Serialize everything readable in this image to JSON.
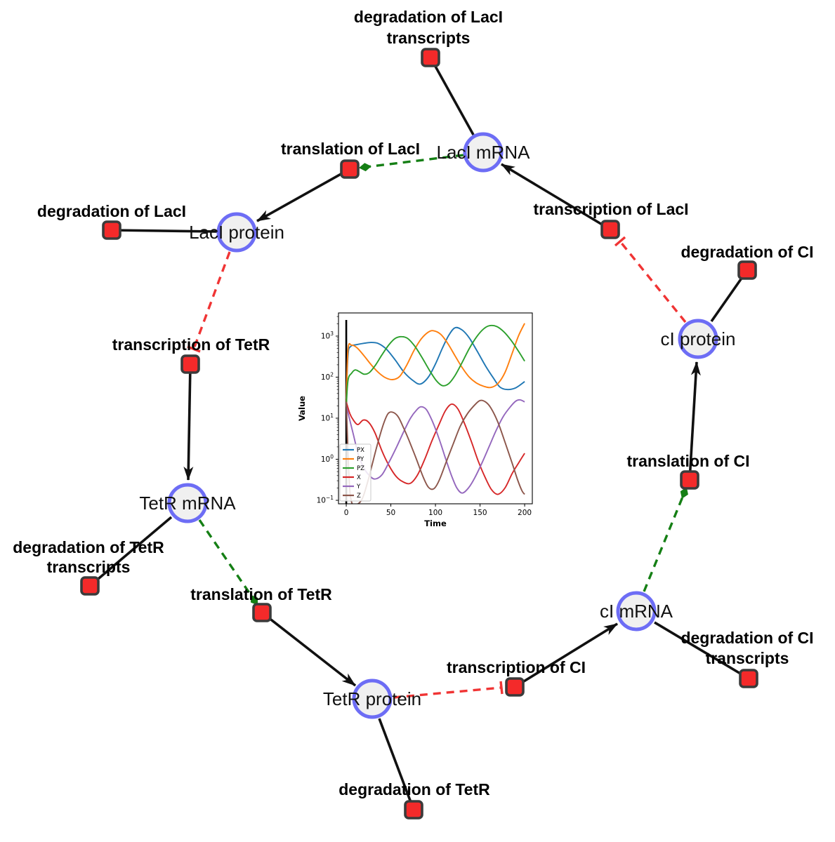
{
  "figure": {
    "background": "#ffffff",
    "description": "Repressilator gene regulatory network with inset simulation time course"
  },
  "diagram": {
    "species": {
      "laci_mrna": {
        "label": "LacI mRNA"
      },
      "laci_protein": {
        "label": "LacI protein"
      },
      "tetr_mrna": {
        "label": "TetR mRNA"
      },
      "tetr_protein": {
        "label": "TetR protein"
      },
      "ci_mrna": {
        "label": "cI mRNA"
      },
      "ci_protein": {
        "label": "cI protein"
      }
    },
    "reactions": {
      "degradation_laci_transcripts": {
        "line1": "degradation of LacI",
        "line2": "transcripts"
      },
      "translation_laci": {
        "label": "translation of LacI"
      },
      "degradation_laci": {
        "label": "degradation of LacI"
      },
      "transcription_laci": {
        "label": "transcription of LacI"
      },
      "degradation_ci": {
        "label": "degradation of CI"
      },
      "transcription_tetr": {
        "label": "transcription of TetR"
      },
      "degradation_tetr_transcripts": {
        "line1": "degradation of TetR",
        "line2": "transcripts"
      },
      "translation_tetr": {
        "label": "translation of TetR"
      },
      "translation_ci": {
        "label": "translation of CI"
      },
      "transcription_ci": {
        "label": "transcription of CI"
      },
      "degradation_ci_transcripts": {
        "line1": "degradation of CI",
        "line2": "transcripts"
      },
      "degradation_tetr": {
        "label": "degradation of TetR"
      }
    },
    "edges": [
      {
        "from": "LacI mRNA",
        "to": "degradation of LacI transcripts",
        "type": "consumption"
      },
      {
        "from": "transcription of LacI",
        "to": "LacI mRNA",
        "type": "production"
      },
      {
        "from": "LacI mRNA",
        "to": "translation of LacI",
        "type": "modifier"
      },
      {
        "from": "translation of LacI",
        "to": "LacI protein",
        "type": "production"
      },
      {
        "from": "LacI protein",
        "to": "degradation of LacI",
        "type": "consumption"
      },
      {
        "from": "LacI protein",
        "to": "transcription of TetR",
        "type": "inhibition"
      },
      {
        "from": "transcription of TetR",
        "to": "TetR mRNA",
        "type": "production"
      },
      {
        "from": "TetR mRNA",
        "to": "degradation of TetR transcripts",
        "type": "consumption"
      },
      {
        "from": "TetR mRNA",
        "to": "translation of TetR",
        "type": "modifier"
      },
      {
        "from": "translation of TetR",
        "to": "TetR protein",
        "type": "production"
      },
      {
        "from": "TetR protein",
        "to": "degradation of TetR",
        "type": "consumption"
      },
      {
        "from": "TetR protein",
        "to": "transcription of CI",
        "type": "inhibition"
      },
      {
        "from": "transcription of CI",
        "to": "cI mRNA",
        "type": "production"
      },
      {
        "from": "cI mRNA",
        "to": "degradation of CI transcripts",
        "type": "consumption"
      },
      {
        "from": "cI mRNA",
        "to": "translation of CI",
        "type": "modifier"
      },
      {
        "from": "translation of CI",
        "to": "cI protein",
        "type": "production"
      },
      {
        "from": "cI protein",
        "to": "degradation of CI",
        "type": "consumption"
      },
      {
        "from": "cI protein",
        "to": "transcription of LacI",
        "type": "inhibition"
      }
    ],
    "colors": {
      "species_fill": "#f0f0f0",
      "species_stroke": "#6d6df5",
      "reaction_fill": "#f42a2a",
      "reaction_stroke": "#3b3b3b",
      "flow_edge": "#111111",
      "modifier_edge": "#157f15",
      "inhibition_edge": "#f03434"
    }
  },
  "chart_data": {
    "type": "line",
    "title": "",
    "xlabel": "Time",
    "ylabel": "Value",
    "yscale": "log",
    "grid": false,
    "legend_position": "lower left",
    "x_ticks": [
      0,
      50,
      100,
      150,
      200
    ],
    "y_tick_exponents": [
      3,
      2,
      1,
      0,
      -1
    ],
    "xlim": [
      -8.7,
      208.6
    ],
    "ylog_lim": [
      -1.085,
      3.564
    ],
    "vline_x": 0,
    "series": [
      {
        "name": "PX",
        "color": "#1f77b4",
        "points": [
          [
            0,
            30
          ],
          [
            2,
            350
          ],
          [
            5,
            560
          ],
          [
            12,
            620
          ],
          [
            20,
            670
          ],
          [
            28,
            700
          ],
          [
            36,
            660
          ],
          [
            45,
            480
          ],
          [
            55,
            260
          ],
          [
            65,
            130
          ],
          [
            75,
            82
          ],
          [
            83,
            68
          ],
          [
            92,
            100
          ],
          [
            100,
            210
          ],
          [
            108,
            520
          ],
          [
            115,
            1050
          ],
          [
            122,
            1600
          ],
          [
            130,
            1400
          ],
          [
            138,
            900
          ],
          [
            147,
            420
          ],
          [
            156,
            190
          ],
          [
            165,
            95
          ],
          [
            172,
            58
          ],
          [
            180,
            50
          ],
          [
            190,
            55
          ],
          [
            200,
            78
          ]
        ]
      },
      {
        "name": "PY",
        "color": "#ff7f0e",
        "points": [
          [
            0,
            25
          ],
          [
            2,
            480
          ],
          [
            6,
            600
          ],
          [
            12,
            520
          ],
          [
            20,
            330
          ],
          [
            28,
            200
          ],
          [
            36,
            130
          ],
          [
            44,
            97
          ],
          [
            52,
            87
          ],
          [
            60,
            105
          ],
          [
            68,
            200
          ],
          [
            76,
            450
          ],
          [
            84,
            850
          ],
          [
            92,
            1250
          ],
          [
            98,
            1350
          ],
          [
            106,
            1100
          ],
          [
            114,
            650
          ],
          [
            122,
            330
          ],
          [
            130,
            170
          ],
          [
            138,
            100
          ],
          [
            146,
            72
          ],
          [
            154,
            60
          ],
          [
            162,
            56
          ],
          [
            170,
            70
          ],
          [
            178,
            130
          ],
          [
            186,
            380
          ],
          [
            193,
            1000
          ],
          [
            200,
            2050
          ]
        ]
      },
      {
        "name": "PZ",
        "color": "#2ca02c",
        "points": [
          [
            0,
            20
          ],
          [
            2,
            85
          ],
          [
            6,
            125
          ],
          [
            10,
            150
          ],
          [
            15,
            135
          ],
          [
            20,
            118
          ],
          [
            26,
            130
          ],
          [
            33,
            200
          ],
          [
            40,
            350
          ],
          [
            48,
            620
          ],
          [
            55,
            880
          ],
          [
            62,
            970
          ],
          [
            69,
            870
          ],
          [
            77,
            560
          ],
          [
            85,
            300
          ],
          [
            93,
            150
          ],
          [
            101,
            82
          ],
          [
            108,
            62
          ],
          [
            115,
            70
          ],
          [
            122,
            110
          ],
          [
            130,
            230
          ],
          [
            138,
            500
          ],
          [
            146,
            950
          ],
          [
            154,
            1500
          ],
          [
            161,
            1800
          ],
          [
            169,
            1700
          ],
          [
            177,
            1250
          ],
          [
            185,
            780
          ],
          [
            193,
            430
          ],
          [
            200,
            245
          ]
        ]
      },
      {
        "name": "X",
        "color": "#d62728",
        "points": [
          [
            0,
            25
          ],
          [
            4,
            13
          ],
          [
            8,
            9
          ],
          [
            13,
            7
          ],
          [
            19,
            9
          ],
          [
            25,
            8
          ],
          [
            32,
            4.5
          ],
          [
            40,
            1.6
          ],
          [
            48,
            0.7
          ],
          [
            56,
            0.38
          ],
          [
            64,
            0.28
          ],
          [
            72,
            0.26
          ],
          [
            80,
            0.42
          ],
          [
            88,
            1
          ],
          [
            96,
            2.8
          ],
          [
            104,
            7
          ],
          [
            111,
            15
          ],
          [
            118,
            22
          ],
          [
            125,
            17
          ],
          [
            132,
            8
          ],
          [
            140,
            2.8
          ],
          [
            148,
            0.9
          ],
          [
            156,
            0.35
          ],
          [
            163,
            0.18
          ],
          [
            170,
            0.14
          ],
          [
            178,
            0.2
          ],
          [
            186,
            0.45
          ],
          [
            193,
            0.8
          ],
          [
            200,
            1.4
          ]
        ]
      },
      {
        "name": "Y",
        "color": "#9467bd",
        "points": [
          [
            0,
            20
          ],
          [
            4,
            9
          ],
          [
            8,
            4
          ],
          [
            14,
            1.2
          ],
          [
            20,
            0.6
          ],
          [
            26,
            0.4
          ],
          [
            32,
            0.33
          ],
          [
            40,
            0.42
          ],
          [
            48,
            0.85
          ],
          [
            56,
            1.9
          ],
          [
            64,
            4.5
          ],
          [
            72,
            10
          ],
          [
            79,
            16
          ],
          [
            84,
            19
          ],
          [
            90,
            16
          ],
          [
            97,
            8
          ],
          [
            104,
            3.2
          ],
          [
            111,
            1.1
          ],
          [
            118,
            0.4
          ],
          [
            124,
            0.2
          ],
          [
            130,
            0.15
          ],
          [
            137,
            0.2
          ],
          [
            144,
            0.35
          ],
          [
            152,
            0.8
          ],
          [
            160,
            2
          ],
          [
            168,
            5
          ],
          [
            176,
            11
          ],
          [
            184,
            19
          ],
          [
            190,
            26
          ],
          [
            195,
            28
          ],
          [
            200,
            25
          ]
        ]
      },
      {
        "name": "Z",
        "color": "#8c564b",
        "points": [
          [
            0,
            25
          ],
          [
            3,
            0.4
          ],
          [
            6,
            0.09
          ],
          [
            12,
            0.08
          ],
          [
            18,
            0.11
          ],
          [
            24,
            0.28
          ],
          [
            30,
            0.9
          ],
          [
            36,
            2.8
          ],
          [
            42,
            7.5
          ],
          [
            47,
            13
          ],
          [
            52,
            14
          ],
          [
            58,
            11
          ],
          [
            64,
            6
          ],
          [
            70,
            3
          ],
          [
            78,
            1.1
          ],
          [
            86,
            0.38
          ],
          [
            92,
            0.21
          ],
          [
            98,
            0.19
          ],
          [
            104,
            0.3
          ],
          [
            112,
            0.85
          ],
          [
            120,
            2.4
          ],
          [
            128,
            6.5
          ],
          [
            136,
            13
          ],
          [
            144,
            21
          ],
          [
            150,
            27
          ],
          [
            156,
            25
          ],
          [
            162,
            18
          ],
          [
            170,
            8
          ],
          [
            178,
            2.6
          ],
          [
            186,
            0.8
          ],
          [
            192,
            0.32
          ],
          [
            197,
            0.17
          ],
          [
            200,
            0.14
          ]
        ]
      }
    ]
  }
}
